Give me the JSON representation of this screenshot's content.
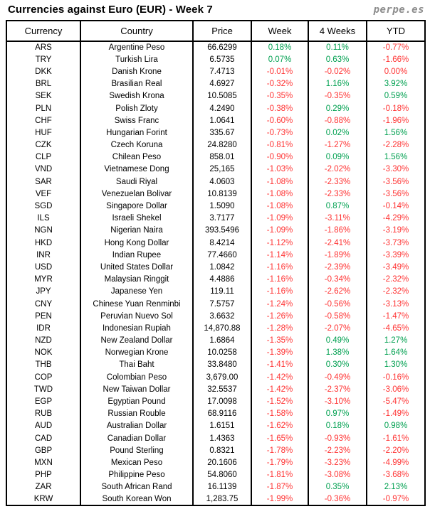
{
  "header": {
    "title": "Currencies against Euro (EUR) - Week 7",
    "logo": "perpe.es"
  },
  "chart_data": {
    "type": "table",
    "title": "Currencies against Euro (EUR) - Week 7",
    "columns": [
      "Currency",
      "Country",
      "Price",
      "Week",
      "4 Weeks",
      "YTD"
    ],
    "rows": [
      {
        "code": "ARS",
        "country": "Argentine Peso",
        "price": "66.6299",
        "week": "0.18%",
        "four_weeks": "0.11%",
        "ytd": "-0.77%"
      },
      {
        "code": "TRY",
        "country": "Turkish Lira",
        "price": "6.5735",
        "week": "0.07%",
        "four_weeks": "0.63%",
        "ytd": "-1.66%"
      },
      {
        "code": "DKK",
        "country": "Danish Krone",
        "price": "7.4713",
        "week": "-0.01%",
        "four_weeks": "-0.02%",
        "ytd": "0.00%"
      },
      {
        "code": "BRL",
        "country": "Brasilian Real",
        "price": "4.6927",
        "week": "-0.32%",
        "four_weeks": "1.16%",
        "ytd": "3.92%"
      },
      {
        "code": "SEK",
        "country": "Swedish Krona",
        "price": "10.5085",
        "week": "-0.35%",
        "four_weeks": "-0.35%",
        "ytd": "0.59%"
      },
      {
        "code": "PLN",
        "country": "Polish Zloty",
        "price": "4.2490",
        "week": "-0.38%",
        "four_weeks": "0.29%",
        "ytd": "-0.18%"
      },
      {
        "code": "CHF",
        "country": "Swiss Franc",
        "price": "1.0641",
        "week": "-0.60%",
        "four_weeks": "-0.88%",
        "ytd": "-1.96%"
      },
      {
        "code": "HUF",
        "country": "Hungarian Forint",
        "price": "335.67",
        "week": "-0.73%",
        "four_weeks": "0.02%",
        "ytd": "1.56%"
      },
      {
        "code": "CZK",
        "country": "Czech Koruna",
        "price": "24.8280",
        "week": "-0.81%",
        "four_weeks": "-1.27%",
        "ytd": "-2.28%"
      },
      {
        "code": "CLP",
        "country": "Chilean Peso",
        "price": "858.01",
        "week": "-0.90%",
        "four_weeks": "0.09%",
        "ytd": "1.56%"
      },
      {
        "code": "VND",
        "country": "Vietnamese Dong",
        "price": "25,165",
        "week": "-1.03%",
        "four_weeks": "-2.02%",
        "ytd": "-3.30%"
      },
      {
        "code": "SAR",
        "country": "Saudi Riyal",
        "price": "4.0603",
        "week": "-1.08%",
        "four_weeks": "-2.33%",
        "ytd": "-3.56%"
      },
      {
        "code": "VEF",
        "country": "Venezuelan Bolivar",
        "price": "10.8139",
        "week": "-1.08%",
        "four_weeks": "-2.33%",
        "ytd": "-3.56%"
      },
      {
        "code": "SGD",
        "country": "Singapore Dollar",
        "price": "1.5090",
        "week": "-1.08%",
        "four_weeks": "0.87%",
        "ytd": "-0.14%"
      },
      {
        "code": "ILS",
        "country": "Israeli Shekel",
        "price": "3.7177",
        "week": "-1.09%",
        "four_weeks": "-3.11%",
        "ytd": "-4.29%"
      },
      {
        "code": "NGN",
        "country": "Nigerian Naira",
        "price": "393.5496",
        "week": "-1.09%",
        "four_weeks": "-1.86%",
        "ytd": "-3.19%"
      },
      {
        "code": "HKD",
        "country": "Hong Kong Dollar",
        "price": "8.4214",
        "week": "-1.12%",
        "four_weeks": "-2.41%",
        "ytd": "-3.73%"
      },
      {
        "code": "INR",
        "country": "Indian Rupee",
        "price": "77.4660",
        "week": "-1.14%",
        "four_weeks": "-1.89%",
        "ytd": "-3.39%"
      },
      {
        "code": "USD",
        "country": "United States Dollar",
        "price": "1.0842",
        "week": "-1.16%",
        "four_weeks": "-2.39%",
        "ytd": "-3.49%"
      },
      {
        "code": "MYR",
        "country": "Malaysian Ringgit",
        "price": "4.4886",
        "week": "-1.16%",
        "four_weeks": "-0.34%",
        "ytd": "-2.32%"
      },
      {
        "code": "JPY",
        "country": "Japanese Yen",
        "price": "119.11",
        "week": "-1.16%",
        "four_weeks": "-2.62%",
        "ytd": "-2.32%"
      },
      {
        "code": "CNY",
        "country": "Chinese Yuan Renminbi",
        "price": "7.5757",
        "week": "-1.24%",
        "four_weeks": "-0.56%",
        "ytd": "-3.13%"
      },
      {
        "code": "PEN",
        "country": "Peruvian Nuevo Sol",
        "price": "3.6632",
        "week": "-1.26%",
        "four_weeks": "-0.58%",
        "ytd": "-1.47%"
      },
      {
        "code": "IDR",
        "country": "Indonesian Rupiah",
        "price": "14,870.88",
        "week": "-1.28%",
        "four_weeks": "-2.07%",
        "ytd": "-4.65%"
      },
      {
        "code": "NZD",
        "country": "New Zealand Dollar",
        "price": "1.6864",
        "week": "-1.35%",
        "four_weeks": "0.49%",
        "ytd": "1.27%"
      },
      {
        "code": "NOK",
        "country": "Norwegian Krone",
        "price": "10.0258",
        "week": "-1.39%",
        "four_weeks": "1.38%",
        "ytd": "1.64%"
      },
      {
        "code": "THB",
        "country": "Thai Baht",
        "price": "33.8480",
        "week": "-1.41%",
        "four_weeks": "0.30%",
        "ytd": "1.30%"
      },
      {
        "code": "COP",
        "country": "Colombian Peso",
        "price": "3,679.00",
        "week": "-1.42%",
        "four_weeks": "-0.49%",
        "ytd": "-0.16%"
      },
      {
        "code": "TWD",
        "country": "New Taiwan Dollar",
        "price": "32.5537",
        "week": "-1.42%",
        "four_weeks": "-2.37%",
        "ytd": "-3.06%"
      },
      {
        "code": "EGP",
        "country": "Egyptian Pound",
        "price": "17.0098",
        "week": "-1.52%",
        "four_weeks": "-3.10%",
        "ytd": "-5.47%"
      },
      {
        "code": "RUB",
        "country": "Russian Rouble",
        "price": "68.9116",
        "week": "-1.58%",
        "four_weeks": "0.97%",
        "ytd": "-1.49%"
      },
      {
        "code": "AUD",
        "country": "Australian Dollar",
        "price": "1.6151",
        "week": "-1.62%",
        "four_weeks": "0.18%",
        "ytd": "0.98%"
      },
      {
        "code": "CAD",
        "country": "Canadian Dollar",
        "price": "1.4363",
        "week": "-1.65%",
        "four_weeks": "-0.93%",
        "ytd": "-1.61%"
      },
      {
        "code": "GBP",
        "country": "Pound Sterling",
        "price": "0.8321",
        "week": "-1.78%",
        "four_weeks": "-2.23%",
        "ytd": "-2.20%"
      },
      {
        "code": "MXN",
        "country": "Mexican Peso",
        "price": "20.1606",
        "week": "-1.79%",
        "four_weeks": "-3.23%",
        "ytd": "-4.99%"
      },
      {
        "code": "PHP",
        "country": "Philippine Peso",
        "price": "54.8060",
        "week": "-1.81%",
        "four_weeks": "-3.08%",
        "ytd": "-3.68%"
      },
      {
        "code": "ZAR",
        "country": "South African Rand",
        "price": "16.1139",
        "week": "-1.87%",
        "four_weeks": "0.35%",
        "ytd": "2.13%"
      },
      {
        "code": "KRW",
        "country": "South Korean Won",
        "price": "1,283.75",
        "week": "-1.99%",
        "four_weeks": "-0.36%",
        "ytd": "-0.97%"
      }
    ]
  },
  "colors": {
    "positive": "#00a050",
    "negative": "#ff3333",
    "border": "#000000",
    "title_text": "#000000",
    "logo_text": "#8c8c8c"
  }
}
